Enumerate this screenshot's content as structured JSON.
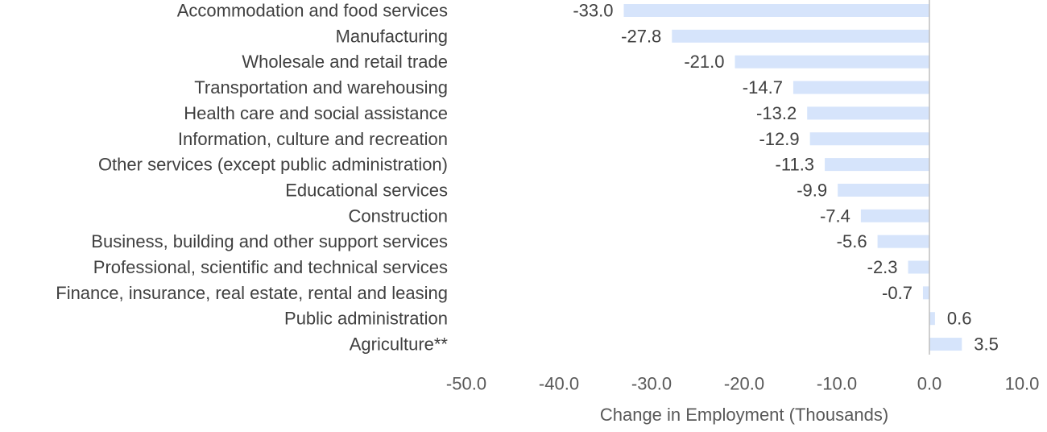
{
  "chart_data": {
    "type": "bar",
    "orientation": "horizontal",
    "categories": [
      "Accommodation and food services",
      "Manufacturing",
      "Wholesale and retail trade",
      "Transportation and warehousing",
      "Health care and social assistance",
      "Information, culture and recreation",
      "Other services (except public administration)",
      "Educational services",
      "Construction",
      "Business, building and other support services",
      "Professional, scientific and technical services",
      "Finance, insurance, real estate, rental and leasing",
      "Public administration",
      "Agriculture**"
    ],
    "values": [
      -33.0,
      -27.8,
      -21.0,
      -14.7,
      -13.2,
      -12.9,
      -11.3,
      -9.9,
      -7.4,
      -5.6,
      -2.3,
      -0.7,
      0.6,
      3.5
    ],
    "value_labels": [
      "-33.0",
      "-27.8",
      "-21.0",
      "-14.7",
      "-13.2",
      "-12.9",
      "-11.3",
      "-9.9",
      "-7.4",
      "-5.6",
      "-2.3",
      "-0.7",
      "0.6",
      "3.5"
    ],
    "xlim": [
      -50,
      10
    ],
    "xticks": [
      -50,
      -40,
      -30,
      -20,
      -10,
      0,
      10
    ],
    "xtick_labels": [
      "-50.0",
      "-40.0",
      "-30.0",
      "-20.0",
      "-10.0",
      "0.0",
      "10.0"
    ],
    "xlabel": "Change in Employment (Thousands)",
    "ylabel": "",
    "title": "",
    "grid": false,
    "colors": {
      "bar": "#d6e4fb",
      "zero_line": "#bfbfbf",
      "text": "#404040",
      "ticks": "#595959"
    }
  }
}
